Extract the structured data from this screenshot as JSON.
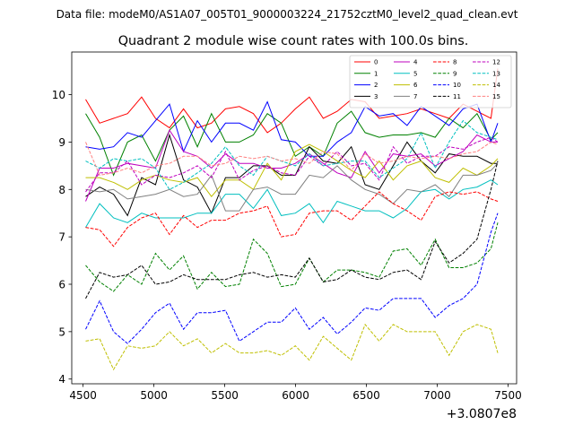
{
  "suptitle": "Data file: modeM0/AS1A07_005T01_9000003224_21752cztM0_level2_quad_clean.evt",
  "chart_data": {
    "type": "line",
    "title": "Quadrant 2 module wise count rates with 100.0s bins.",
    "xlabel": "",
    "ylabel": "",
    "x_offset_label": "+3.0807e8",
    "xlim": [
      4420,
      7560
    ],
    "ylim": [
      3.9,
      10.9
    ],
    "x_ticks": [
      4500,
      5000,
      5500,
      6000,
      6500,
      7000,
      7500
    ],
    "y_ticks": [
      4,
      5,
      6,
      7,
      8,
      9,
      10
    ],
    "grid": false,
    "legend_position": "top-right",
    "x": [
      4518,
      4617,
      4715,
      4814,
      4913,
      5011,
      5110,
      5209,
      5307,
      5406,
      5505,
      5603,
      5702,
      5801,
      5899,
      5998,
      6097,
      6195,
      6294,
      6393,
      6491,
      6590,
      6689,
      6787,
      6886,
      6985,
      7083,
      7182,
      7281,
      7379,
      7427
    ],
    "series": [
      {
        "name": "0",
        "color": "#ff0000",
        "style": "solid",
        "values": [
          9.9,
          9.4,
          9.5,
          9.6,
          9.95,
          9.5,
          9.3,
          9.7,
          9.3,
          9.4,
          9.7,
          9.75,
          9.6,
          9.2,
          9.4,
          9.7,
          9.95,
          9.5,
          9.65,
          9.9,
          9.85,
          9.5,
          9.55,
          9.6,
          9.7,
          9.6,
          9.5,
          9.8,
          9.65,
          9.5,
          10.55
        ]
      },
      {
        "name": "1",
        "color": "#008000",
        "style": "solid",
        "values": [
          9.6,
          9.1,
          8.3,
          9.0,
          9.15,
          8.6,
          9.25,
          9.55,
          8.9,
          9.6,
          9.0,
          9.0,
          9.15,
          9.6,
          9.4,
          8.7,
          8.9,
          8.7,
          9.4,
          9.65,
          9.2,
          9.1,
          9.15,
          9.15,
          9.2,
          9.1,
          9.5,
          9.3,
          9.6,
          9.05,
          9.2
        ]
      },
      {
        "name": "2",
        "color": "#0000ff",
        "style": "solid",
        "values": [
          8.9,
          8.85,
          8.9,
          9.2,
          9.1,
          9.45,
          9.8,
          8.8,
          9.45,
          9.0,
          9.4,
          9.4,
          9.25,
          9.85,
          9.05,
          9.0,
          8.7,
          8.7,
          9.0,
          9.2,
          9.75,
          9.55,
          9.6,
          9.35,
          9.75,
          9.55,
          9.35,
          9.7,
          9.8,
          9.0,
          9.4
        ]
      },
      {
        "name": "3",
        "color": "#000000",
        "style": "solid",
        "values": [
          7.85,
          8.05,
          7.9,
          7.45,
          8.25,
          8.1,
          9.15,
          8.2,
          8.05,
          7.5,
          8.25,
          8.25,
          8.5,
          8.5,
          8.3,
          8.3,
          8.9,
          8.6,
          8.55,
          8.9,
          8.1,
          8.0,
          8.5,
          9.0,
          8.6,
          8.35,
          8.75,
          8.7,
          8.7,
          8.55,
          8.55
        ]
      },
      {
        "name": "4",
        "color": "#bf00bf",
        "style": "solid",
        "values": [
          7.75,
          8.45,
          8.45,
          8.55,
          8.5,
          8.45,
          9.25,
          8.8,
          8.7,
          8.45,
          8.75,
          8.55,
          8.55,
          8.45,
          8.45,
          8.55,
          8.75,
          8.55,
          8.35,
          8.25,
          8.8,
          8.35,
          8.75,
          8.7,
          8.75,
          8.5,
          8.65,
          8.8,
          9.15,
          9.0,
          9.0
        ]
      },
      {
        "name": "5",
        "color": "#00bfbf",
        "style": "solid",
        "values": [
          7.2,
          7.7,
          7.4,
          7.3,
          7.5,
          7.4,
          7.4,
          7.4,
          7.5,
          7.5,
          7.9,
          7.9,
          7.6,
          8.0,
          7.45,
          7.5,
          7.7,
          7.3,
          7.75,
          7.65,
          7.55,
          7.55,
          7.4,
          7.6,
          7.95,
          8.0,
          7.8,
          8.0,
          8.05,
          8.2,
          8.1
        ]
      },
      {
        "name": "6",
        "color": "#bfbf00",
        "style": "solid",
        "values": [
          8.25,
          8.25,
          8.15,
          8.0,
          8.2,
          8.3,
          8.2,
          8.15,
          8.25,
          7.85,
          8.2,
          8.2,
          8.0,
          8.55,
          8.2,
          8.8,
          8.95,
          8.8,
          8.6,
          8.4,
          8.25,
          8.6,
          8.2,
          8.5,
          8.6,
          8.25,
          8.15,
          8.45,
          8.3,
          8.5,
          8.65
        ]
      },
      {
        "name": "7",
        "color": "#808080",
        "style": "solid",
        "values": [
          8.0,
          7.95,
          8.0,
          7.8,
          7.85,
          7.9,
          8.0,
          7.85,
          7.9,
          8.3,
          7.55,
          7.55,
          8.0,
          8.05,
          7.9,
          7.9,
          8.3,
          8.25,
          8.5,
          8.2,
          8.0,
          7.9,
          7.7,
          8.0,
          7.95,
          8.1,
          7.85,
          8.3,
          8.3,
          8.4,
          8.55
        ]
      },
      {
        "name": "8",
        "color": "#ff0000",
        "style": "dashed",
        "values": [
          7.2,
          7.15,
          6.8,
          7.2,
          7.4,
          7.5,
          7.05,
          7.45,
          7.2,
          7.35,
          7.35,
          7.5,
          7.55,
          7.65,
          7.0,
          7.05,
          7.5,
          7.55,
          7.55,
          7.35,
          7.65,
          7.95,
          7.7,
          7.55,
          7.35,
          7.85,
          7.95,
          7.9,
          7.95,
          7.8,
          7.75
        ]
      },
      {
        "name": "9",
        "color": "#008000",
        "style": "dashed",
        "values": [
          6.4,
          6.05,
          5.85,
          6.2,
          6.0,
          6.65,
          6.3,
          6.6,
          5.9,
          6.25,
          5.95,
          6.0,
          6.95,
          6.65,
          5.95,
          6.0,
          6.55,
          6.05,
          6.3,
          6.3,
          6.25,
          6.15,
          6.7,
          6.75,
          6.4,
          6.95,
          6.35,
          6.35,
          6.45,
          6.75,
          7.3
        ]
      },
      {
        "name": "10",
        "color": "#0000ff",
        "style": "dashed",
        "values": [
          5.05,
          5.65,
          5.0,
          4.75,
          5.05,
          5.4,
          5.6,
          5.05,
          5.4,
          5.4,
          5.45,
          4.8,
          5.0,
          5.2,
          5.2,
          5.5,
          5.05,
          5.3,
          4.95,
          5.2,
          5.5,
          5.45,
          5.7,
          5.7,
          5.7,
          5.3,
          5.55,
          5.7,
          6.0,
          7.1,
          7.5
        ]
      },
      {
        "name": "11",
        "color": "#000000",
        "style": "dashed",
        "values": [
          5.7,
          6.25,
          6.15,
          6.2,
          6.4,
          6.0,
          6.05,
          6.2,
          6.1,
          6.1,
          6.1,
          6.2,
          6.25,
          6.15,
          6.2,
          6.15,
          6.55,
          6.05,
          6.1,
          6.3,
          6.15,
          6.1,
          6.25,
          6.3,
          6.1,
          6.9,
          6.45,
          6.65,
          6.95,
          8.0,
          8.6
        ]
      },
      {
        "name": "12",
        "color": "#bf00bf",
        "style": "dashed",
        "values": [
          7.95,
          8.35,
          8.35,
          8.6,
          8.1,
          8.3,
          8.25,
          8.35,
          8.5,
          8.25,
          8.8,
          8.2,
          8.4,
          8.5,
          8.35,
          8.3,
          8.7,
          8.5,
          8.8,
          8.5,
          8.55,
          8.2,
          8.9,
          8.55,
          8.7,
          8.7,
          8.9,
          8.85,
          9.0,
          9.1,
          9.0
        ]
      },
      {
        "name": "13",
        "color": "#00bfbf",
        "style": "dashed",
        "values": [
          8.6,
          8.45,
          8.65,
          8.6,
          8.65,
          8.45,
          8.0,
          8.15,
          8.35,
          8.55,
          8.9,
          8.5,
          8.3,
          8.7,
          8.6,
          8.5,
          8.75,
          8.5,
          8.55,
          8.6,
          8.6,
          8.25,
          8.45,
          8.65,
          9.2,
          8.45,
          9.0,
          9.45,
          9.2,
          9.1,
          9.05
        ]
      },
      {
        "name": "14",
        "color": "#bfbf00",
        "style": "dashed",
        "values": [
          4.8,
          4.85,
          4.2,
          4.7,
          4.65,
          4.7,
          5.0,
          4.7,
          4.85,
          4.55,
          4.75,
          4.55,
          4.55,
          4.6,
          4.5,
          4.7,
          4.4,
          4.9,
          4.65,
          4.4,
          5.15,
          4.8,
          5.15,
          5.0,
          5.0,
          5.0,
          4.5,
          5.0,
          5.15,
          5.05,
          4.55
        ]
      },
      {
        "name": "15",
        "color": "#ff8080",
        "style": "dashed",
        "values": [
          9.0,
          8.3,
          8.35,
          8.45,
          8.35,
          8.5,
          8.55,
          8.7,
          8.7,
          8.5,
          8.55,
          8.7,
          8.65,
          8.7,
          8.6,
          8.65,
          8.55,
          8.8,
          8.75,
          8.4,
          8.75,
          8.55,
          8.6,
          8.7,
          8.65,
          8.7,
          8.65,
          8.75,
          8.8,
          9.0,
          8.95
        ]
      }
    ]
  }
}
